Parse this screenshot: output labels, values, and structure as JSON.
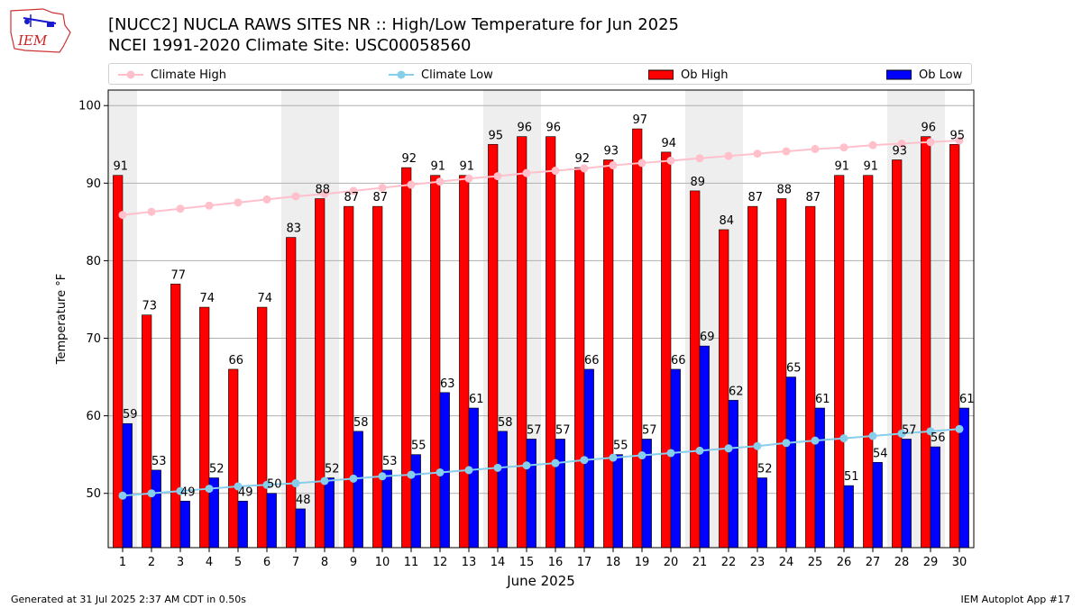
{
  "header": {
    "title_line1": "[NUCC2] NUCLA RAWS SITES NR :: High/Low Temperature for Jun 2025",
    "title_line2": "NCEI 1991-2020 Climate Site: USC00058560",
    "logo_text": "IEM"
  },
  "footer": {
    "generated": "Generated at 31 Jul 2025 2:37 AM CDT in 0.50s",
    "app": "IEM Autoplot App #17"
  },
  "colors": {
    "ob_high": "#ff0000",
    "ob_low": "#0000ff",
    "climate_high": "#ffc0cb",
    "climate_low": "#87ceeb",
    "weekend_shade": "#eeeeee",
    "grid": "#b0b0b0"
  },
  "chart_data": {
    "type": "bar",
    "title": "[NUCC2] NUCLA RAWS SITES NR :: High/Low Temperature for Jun 2025",
    "subtitle": "NCEI 1991-2020 Climate Site: USC00058560",
    "xlabel": "June 2025",
    "ylabel": "Temperature °F",
    "ylim": [
      43,
      102
    ],
    "yticks": [
      50,
      60,
      70,
      80,
      90,
      100
    ],
    "grid": "horizontal",
    "legend_position": "top",
    "shaded_weekend_days": [
      1,
      7,
      8,
      14,
      15,
      21,
      22,
      28,
      29
    ],
    "categories": [
      "1",
      "2",
      "3",
      "4",
      "5",
      "6",
      "7",
      "8",
      "9",
      "10",
      "11",
      "12",
      "13",
      "14",
      "15",
      "16",
      "17",
      "18",
      "19",
      "20",
      "21",
      "22",
      "23",
      "24",
      "25",
      "26",
      "27",
      "28",
      "29",
      "30"
    ],
    "series": [
      {
        "name": "Ob High",
        "kind": "bar",
        "values": [
          91,
          73,
          77,
          74,
          66,
          74,
          83,
          88,
          87,
          87,
          92,
          91,
          91,
          95,
          96,
          96,
          92,
          93,
          97,
          94,
          89,
          84,
          87,
          88,
          87,
          91,
          91,
          93,
          96,
          95
        ]
      },
      {
        "name": "Ob Low",
        "kind": "bar",
        "values": [
          59,
          53,
          49,
          52,
          49,
          50,
          48,
          52,
          58,
          53,
          55,
          63,
          61,
          58,
          57,
          57,
          66,
          55,
          57,
          66,
          69,
          62,
          52,
          65,
          61,
          51,
          54,
          57,
          56,
          61
        ]
      },
      {
        "name": "Climate High",
        "kind": "line",
        "values": [
          85.9,
          86.3,
          86.7,
          87.1,
          87.5,
          87.9,
          88.3,
          88.6,
          89.0,
          89.4,
          89.8,
          90.2,
          90.6,
          90.9,
          91.3,
          91.6,
          91.9,
          92.3,
          92.6,
          92.9,
          93.2,
          93.5,
          93.8,
          94.1,
          94.4,
          94.6,
          94.9,
          95.1,
          95.3,
          95.5
        ]
      },
      {
        "name": "Climate Low",
        "kind": "line",
        "values": [
          49.7,
          50.0,
          50.3,
          50.6,
          50.9,
          51.1,
          51.3,
          51.6,
          51.9,
          52.2,
          52.4,
          52.7,
          53.0,
          53.3,
          53.6,
          53.9,
          54.3,
          54.6,
          54.9,
          55.2,
          55.5,
          55.8,
          56.1,
          56.5,
          56.8,
          57.1,
          57.4,
          57.7,
          58.0,
          58.3
        ]
      }
    ]
  }
}
